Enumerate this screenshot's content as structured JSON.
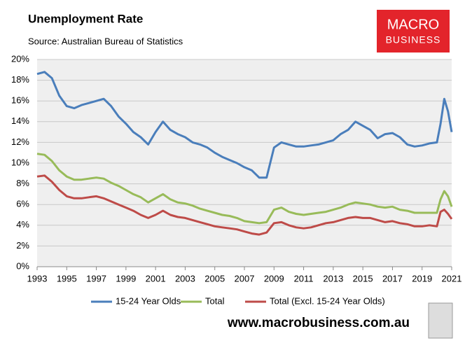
{
  "chart_data": {
    "type": "line",
    "title": "Unemployment Rate",
    "subtitle": "Source: Australian Bureau of Statistics",
    "logo": [
      "MACRO",
      "BUSINESS"
    ],
    "footer": "www.macrobusiness.com.au",
    "x": [
      1993,
      1993.5,
      1994,
      1994.5,
      1995,
      1995.5,
      1996,
      1996.5,
      1997,
      1997.5,
      1998,
      1998.5,
      1999,
      1999.5,
      2000,
      2000.5,
      2001,
      2001.5,
      2002,
      2002.5,
      2003,
      2003.5,
      2004,
      2004.5,
      2005,
      2005.5,
      2006,
      2006.5,
      2007,
      2007.5,
      2008,
      2008.5,
      2009,
      2009.5,
      2010,
      2010.5,
      2011,
      2011.5,
      2012,
      2012.5,
      2013,
      2013.5,
      2014,
      2014.5,
      2015,
      2015.5,
      2016,
      2016.5,
      2017,
      2017.5,
      2018,
      2018.5,
      2019,
      2019.5,
      2020,
      2020.25,
      2020.5,
      2020.75,
      2021
    ],
    "series": [
      {
        "name": "15-24 Year Olds",
        "color": "#4a7ebb",
        "values": [
          18.6,
          18.8,
          18.2,
          16.5,
          15.5,
          15.3,
          15.6,
          15.8,
          16.0,
          16.2,
          15.5,
          14.5,
          13.8,
          13.0,
          12.5,
          11.8,
          13.0,
          14.0,
          13.2,
          12.8,
          12.5,
          12.0,
          11.8,
          11.5,
          11.0,
          10.6,
          10.3,
          10.0,
          9.6,
          9.3,
          8.6,
          8.6,
          11.5,
          12.0,
          11.8,
          11.6,
          11.6,
          11.7,
          11.8,
          12.0,
          12.2,
          12.8,
          13.2,
          14.0,
          13.6,
          13.2,
          12.4,
          12.8,
          12.9,
          12.5,
          11.8,
          11.6,
          11.7,
          11.9,
          12.0,
          13.8,
          16.2,
          15.0,
          13.0
        ]
      },
      {
        "name": "Total",
        "color": "#98bb59",
        "values": [
          10.9,
          10.8,
          10.2,
          9.3,
          8.7,
          8.4,
          8.4,
          8.5,
          8.6,
          8.5,
          8.1,
          7.8,
          7.4,
          7.0,
          6.7,
          6.2,
          6.6,
          7.0,
          6.5,
          6.2,
          6.1,
          5.9,
          5.6,
          5.4,
          5.2,
          5.0,
          4.9,
          4.7,
          4.4,
          4.3,
          4.2,
          4.3,
          5.5,
          5.7,
          5.3,
          5.1,
          5.0,
          5.1,
          5.2,
          5.3,
          5.5,
          5.7,
          6.0,
          6.2,
          6.1,
          6.0,
          5.8,
          5.7,
          5.8,
          5.5,
          5.4,
          5.2,
          5.2,
          5.2,
          5.2,
          6.5,
          7.3,
          6.8,
          5.8
        ]
      },
      {
        "name": "Total (Excl. 15-24 Year Olds)",
        "color": "#be4b48",
        "values": [
          8.7,
          8.8,
          8.2,
          7.4,
          6.8,
          6.6,
          6.6,
          6.7,
          6.8,
          6.6,
          6.3,
          6.0,
          5.7,
          5.4,
          5.0,
          4.7,
          5.0,
          5.4,
          5.0,
          4.8,
          4.7,
          4.5,
          4.3,
          4.1,
          3.9,
          3.8,
          3.7,
          3.6,
          3.4,
          3.2,
          3.1,
          3.3,
          4.2,
          4.3,
          4.0,
          3.8,
          3.7,
          3.8,
          4.0,
          4.2,
          4.3,
          4.5,
          4.7,
          4.8,
          4.7,
          4.7,
          4.5,
          4.3,
          4.4,
          4.2,
          4.1,
          3.9,
          3.9,
          4.0,
          3.9,
          5.3,
          5.5,
          5.1,
          4.6
        ]
      }
    ],
    "xlim": [
      1993,
      2021
    ],
    "xticks": [
      1993,
      1995,
      1997,
      1999,
      2001,
      2003,
      2005,
      2007,
      2009,
      2011,
      2013,
      2015,
      2017,
      2019,
      2021
    ],
    "ylim": [
      0,
      20
    ],
    "yticks": [
      {
        "value": 0,
        "label": "0%"
      },
      {
        "value": 2,
        "label": "2%"
      },
      {
        "value": 4,
        "label": "4%"
      },
      {
        "value": 6,
        "label": "6%"
      },
      {
        "value": 8,
        "label": "8%"
      },
      {
        "value": 10,
        "label": "10%"
      },
      {
        "value": 12,
        "label": "12%"
      },
      {
        "value": 14,
        "label": "14%"
      },
      {
        "value": 16,
        "label": "16%"
      },
      {
        "value": 18,
        "label": "18%"
      },
      {
        "value": 20,
        "label": "20%"
      }
    ],
    "grid": true,
    "legend": "bottom"
  }
}
